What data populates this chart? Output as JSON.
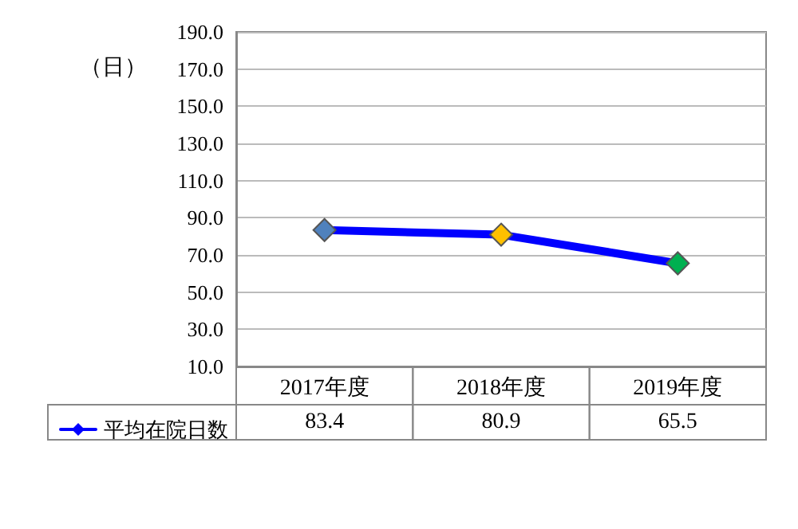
{
  "chart_data": {
    "type": "line",
    "ylabel": "（日）",
    "categories": [
      "2017年度",
      "2018年度",
      "2019年度"
    ],
    "series": [
      {
        "name": "平均在院日数",
        "color": "#0000ff",
        "colors": [
          "#4f81bd",
          "#ffc000",
          "#00b050"
        ],
        "values": [
          83.4,
          80.9,
          65.5
        ]
      }
    ],
    "ylim": [
      10,
      190
    ],
    "yticks": [
      {
        "value": 10,
        "label": "10.0"
      },
      {
        "value": 30,
        "label": "30.0"
      },
      {
        "value": 50,
        "label": "50.0"
      },
      {
        "value": 70,
        "label": "70.0"
      },
      {
        "value": 90,
        "label": "90.0"
      },
      {
        "value": 110,
        "label": "110.0"
      },
      {
        "value": 130,
        "label": "130.0"
      },
      {
        "value": 150,
        "label": "150.0"
      },
      {
        "value": 170,
        "label": "170.0"
      },
      {
        "value": 190,
        "label": "190.0"
      }
    ],
    "grid": "y",
    "legend": "bottom left",
    "marker": "diamond",
    "line_style": "solid",
    "data_labels": true
  }
}
